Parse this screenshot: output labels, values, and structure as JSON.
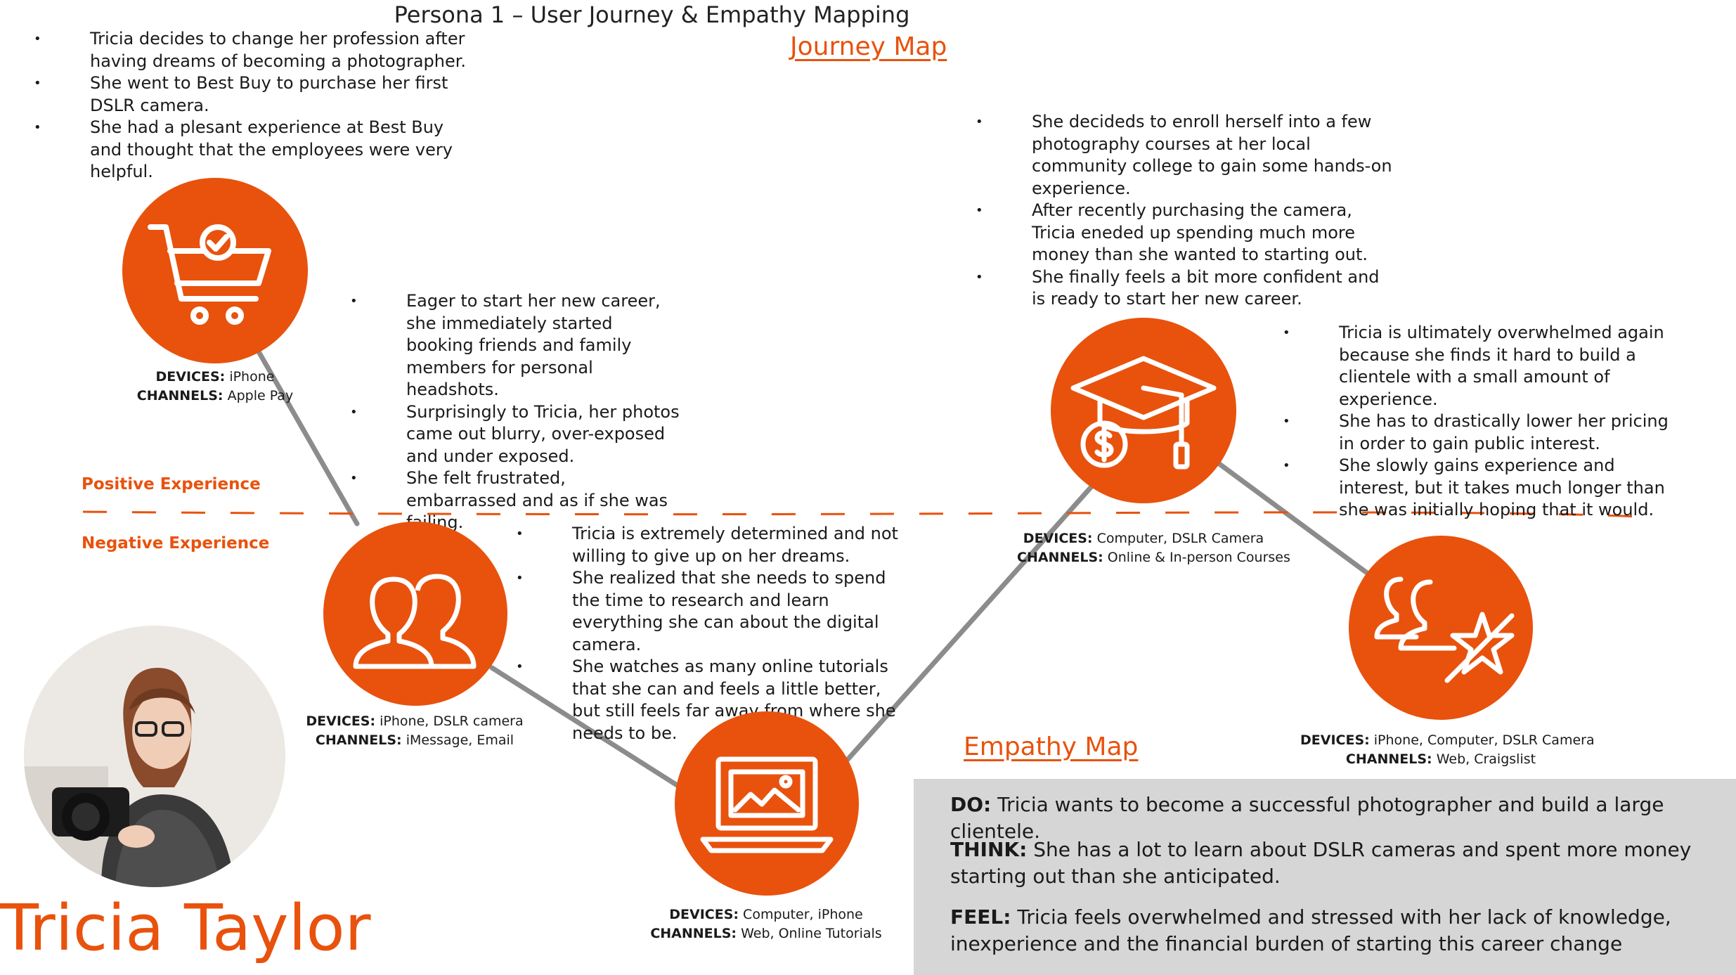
{
  "title": "Persona 1 – User Journey & Empathy Mapping",
  "journey_map_label": "Journey Map",
  "empathy_map_label": "Empathy Map",
  "positive_label": "Positive Experience",
  "negative_label": "Negative Experience",
  "persona_name": "Tricia Taylor",
  "colors": {
    "accent": "#e8520d",
    "line": "#8c8c8c",
    "empathy_bg": "#d6d6d6"
  },
  "stages": [
    {
      "icon": "shopping-cart-check-icon",
      "devices_label": "DEVICES:",
      "devices": "iPhone",
      "channels_label": "CHANNELS:",
      "channels": "Apple Pay",
      "notes": [
        "Tricia decides to change her profession after having dreams of becoming a photographer.",
        "She went to Best Buy to purchase her first DSLR camera.",
        "She had a plesant experience at Best Buy and thought that the employees were very helpful."
      ]
    },
    {
      "icon": "people-icon",
      "devices_label": "DEVICES:",
      "devices": "iPhone, DSLR camera",
      "channels_label": "CHANNELS:",
      "channels": "iMessage, Email",
      "notes": [
        "Eager to start her new career, she immediately started booking friends and family members for personal headshots.",
        "Surprisingly to Tricia, her photos came out blurry, over-exposed and under exposed.",
        "She felt frustrated, embarrassed and as if she was failing."
      ]
    },
    {
      "icon": "laptop-image-icon",
      "devices_label": "DEVICES:",
      "devices": "Computer, iPhone",
      "channels_label": "CHANNELS:",
      "channels": "Web, Online Tutorials",
      "notes": [
        "Tricia is extremely determined and not willing to give up on her dreams.",
        "She realized that she needs to spend the time to research and learn everything she can about the digital camera.",
        "She watches as many online tutorials that she can and feels a little better, but still feels far away from where she needs to be."
      ]
    },
    {
      "icon": "graduation-cap-dollar-icon",
      "devices_label": "DEVICES:",
      "devices": "Computer, DSLR Camera",
      "channels_label": "CHANNELS:",
      "channels": "Online & In-person Courses",
      "notes": [
        "She decideds to enroll herself into a few photography courses at her local community college to gain some hands-on experience.",
        "After recently purchasing the camera, Tricia eneded up spending much more money than she wanted to starting out.",
        "She finally feels a bit more confident and is ready to start her new career."
      ]
    },
    {
      "icon": "people-broken-star-icon",
      "devices_label": "DEVICES:",
      "devices": "iPhone, Computer, DSLR Camera",
      "channels_label": "CHANNELS:",
      "channels": "Web, Craigslist",
      "notes": [
        "Tricia is ultimately overwhelmed again because she finds it hard to build a clientele with a small amount of experience.",
        "She has to drastically lower her pricing in order to gain public interest.",
        "She slowly gains experience and interest, but it takes much longer than she was initially hoping that it would."
      ]
    }
  ],
  "empathy": {
    "do_label": "DO:",
    "do_text": "Tricia wants to become a successful photographer and build a large clientele.",
    "think_label": "THINK:",
    "think_text": "She has a lot to learn about DSLR cameras and spent more money starting out than she anticipated.",
    "feel_label": "FEEL:",
    "feel_text": "Tricia feels overwhelmed and stressed with her lack of knowledge, inexperience and the financial burden of starting this career change"
  }
}
